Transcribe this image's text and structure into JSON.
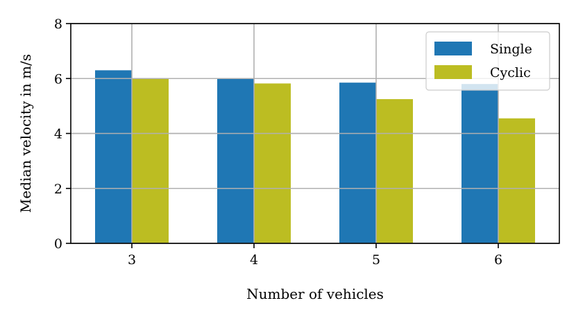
{
  "chart_data": {
    "type": "bar",
    "categories": [
      "3",
      "4",
      "5",
      "6"
    ],
    "series": [
      {
        "name": "Single",
        "values": [
          6.3,
          6.0,
          5.85,
          5.8
        ],
        "color": "#1f77b4"
      },
      {
        "name": "Cyclic",
        "values": [
          6.0,
          5.82,
          5.25,
          4.55
        ],
        "color": "#bcbd22"
      }
    ],
    "xlabel": "Number of vehicles",
    "ylabel": "Median velocity in m/s",
    "ylim": [
      0,
      8
    ],
    "yticks": [
      "0",
      "2",
      "4",
      "6",
      "8"
    ],
    "grid": true,
    "legend_position": "top-right"
  }
}
